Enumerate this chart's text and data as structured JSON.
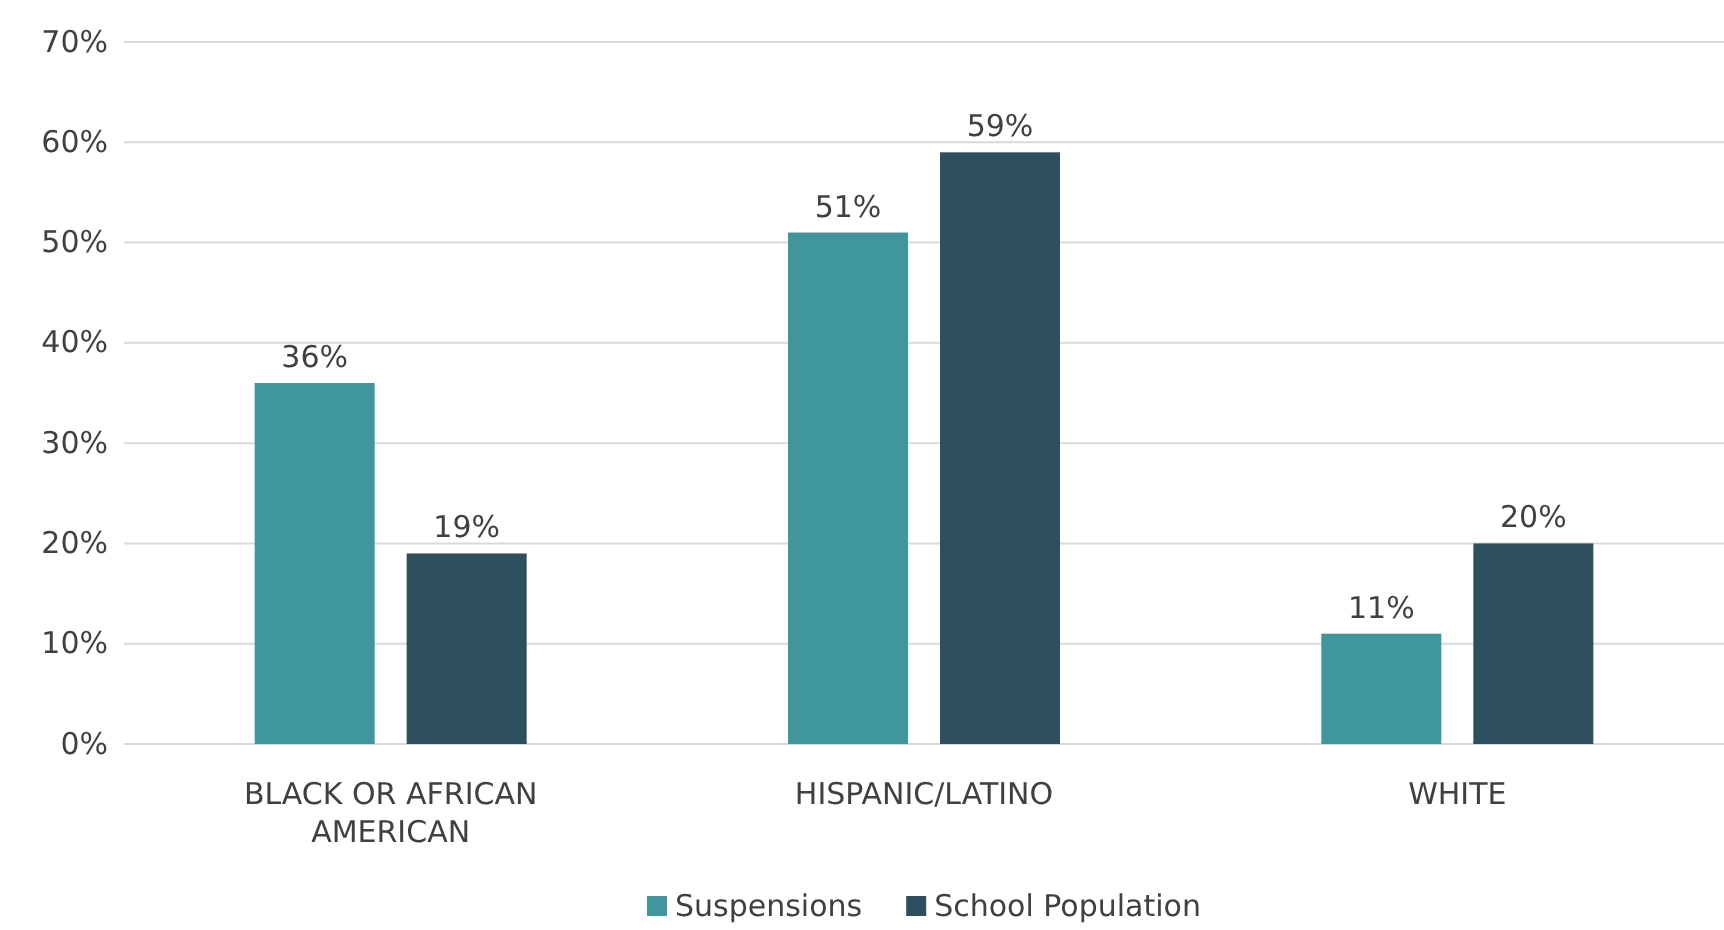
{
  "chart_data": {
    "type": "bar",
    "categories": [
      "BLACK OR AFRICAN AMERICAN",
      "HISPANIC/LATINO",
      "WHITE"
    ],
    "series": [
      {
        "name": "Suspensions",
        "color": "#3f969d",
        "values": [
          36,
          51,
          11
        ],
        "value_labels": [
          "36%",
          "51%",
          "11%"
        ]
      },
      {
        "name": "School Population",
        "color": "#2d4f5e",
        "values": [
          19,
          59,
          20
        ],
        "value_labels": [
          "19%",
          "59%",
          "20%"
        ]
      }
    ],
    "ylim": [
      0,
      70
    ],
    "yticks": [
      {
        "value": 0,
        "label": "0%"
      },
      {
        "value": 10,
        "label": "10%"
      },
      {
        "value": 20,
        "label": "20%"
      },
      {
        "value": 30,
        "label": "30%"
      },
      {
        "value": 40,
        "label": "40%"
      },
      {
        "value": 50,
        "label": "50%"
      },
      {
        "value": 60,
        "label": "60%"
      },
      {
        "value": 70,
        "label": "70%"
      }
    ],
    "grid": "y",
    "legend": "bottom"
  }
}
